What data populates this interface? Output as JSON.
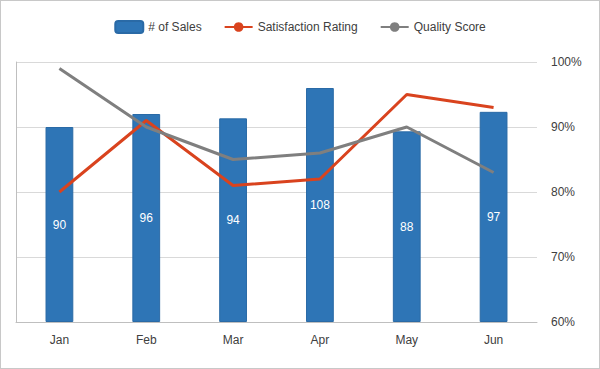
{
  "chart_data": {
    "type": "bar",
    "categories": [
      "Jan",
      "Feb",
      "Mar",
      "Apr",
      "May",
      "Jun"
    ],
    "series": [
      {
        "name": "# of Sales",
        "type": "bar",
        "color": "#2e75b6",
        "values": [
          90,
          96,
          94,
          108,
          88,
          97
        ],
        "data_labels": true
      },
      {
        "name": "Satisfaction Rating",
        "type": "line",
        "color": "#d9431e",
        "axis": "y2",
        "marker": "none",
        "line_style": "solid",
        "values": [
          80,
          91,
          81,
          82,
          95,
          93
        ]
      },
      {
        "name": "Quality Score",
        "type": "line",
        "color": "#7f7f7f",
        "axis": "y2",
        "marker": "none",
        "line_style": "solid",
        "values": [
          99,
          90,
          85,
          86,
          90,
          83
        ]
      }
    ],
    "ylim": [
      0,
      120
    ],
    "y2lim": [
      60,
      100
    ],
    "y2ticks": [
      {
        "value": 60,
        "label": "60%"
      },
      {
        "value": 70,
        "label": "70%"
      },
      {
        "value": 80,
        "label": "80%"
      },
      {
        "value": 90,
        "label": "90%"
      },
      {
        "value": 100,
        "label": "100%"
      }
    ],
    "grid": true,
    "legend": "top"
  }
}
